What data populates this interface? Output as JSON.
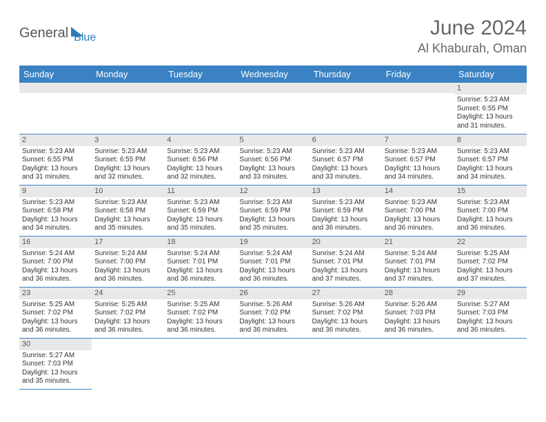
{
  "logo": {
    "part1": "General",
    "part2": "Blue"
  },
  "title": "June 2024",
  "location": "Al Khaburah, Oman",
  "colors": {
    "header_bg": "#3b82c4",
    "header_text": "#ffffff",
    "daynum_bg": "#e8e8e8",
    "border": "#3b82c4",
    "text": "#333333",
    "title_text": "#666666"
  },
  "weekdays": [
    "Sunday",
    "Monday",
    "Tuesday",
    "Wednesday",
    "Thursday",
    "Friday",
    "Saturday"
  ],
  "weeks": [
    [
      null,
      null,
      null,
      null,
      null,
      null,
      {
        "n": "1",
        "sr": "5:23 AM",
        "ss": "6:55 PM",
        "dl": "13 hours and 31 minutes."
      }
    ],
    [
      {
        "n": "2",
        "sr": "5:23 AM",
        "ss": "6:55 PM",
        "dl": "13 hours and 31 minutes."
      },
      {
        "n": "3",
        "sr": "5:23 AM",
        "ss": "6:55 PM",
        "dl": "13 hours and 32 minutes."
      },
      {
        "n": "4",
        "sr": "5:23 AM",
        "ss": "6:56 PM",
        "dl": "13 hours and 32 minutes."
      },
      {
        "n": "5",
        "sr": "5:23 AM",
        "ss": "6:56 PM",
        "dl": "13 hours and 33 minutes."
      },
      {
        "n": "6",
        "sr": "5:23 AM",
        "ss": "6:57 PM",
        "dl": "13 hours and 33 minutes."
      },
      {
        "n": "7",
        "sr": "5:23 AM",
        "ss": "6:57 PM",
        "dl": "13 hours and 34 minutes."
      },
      {
        "n": "8",
        "sr": "5:23 AM",
        "ss": "6:57 PM",
        "dl": "13 hours and 34 minutes."
      }
    ],
    [
      {
        "n": "9",
        "sr": "5:23 AM",
        "ss": "6:58 PM",
        "dl": "13 hours and 34 minutes."
      },
      {
        "n": "10",
        "sr": "5:23 AM",
        "ss": "6:58 PM",
        "dl": "13 hours and 35 minutes."
      },
      {
        "n": "11",
        "sr": "5:23 AM",
        "ss": "6:59 PM",
        "dl": "13 hours and 35 minutes."
      },
      {
        "n": "12",
        "sr": "5:23 AM",
        "ss": "6:59 PM",
        "dl": "13 hours and 35 minutes."
      },
      {
        "n": "13",
        "sr": "5:23 AM",
        "ss": "6:59 PM",
        "dl": "13 hours and 36 minutes."
      },
      {
        "n": "14",
        "sr": "5:23 AM",
        "ss": "7:00 PM",
        "dl": "13 hours and 36 minutes."
      },
      {
        "n": "15",
        "sr": "5:23 AM",
        "ss": "7:00 PM",
        "dl": "13 hours and 36 minutes."
      }
    ],
    [
      {
        "n": "16",
        "sr": "5:24 AM",
        "ss": "7:00 PM",
        "dl": "13 hours and 36 minutes."
      },
      {
        "n": "17",
        "sr": "5:24 AM",
        "ss": "7:00 PM",
        "dl": "13 hours and 36 minutes."
      },
      {
        "n": "18",
        "sr": "5:24 AM",
        "ss": "7:01 PM",
        "dl": "13 hours and 36 minutes."
      },
      {
        "n": "19",
        "sr": "5:24 AM",
        "ss": "7:01 PM",
        "dl": "13 hours and 36 minutes."
      },
      {
        "n": "20",
        "sr": "5:24 AM",
        "ss": "7:01 PM",
        "dl": "13 hours and 37 minutes."
      },
      {
        "n": "21",
        "sr": "5:24 AM",
        "ss": "7:01 PM",
        "dl": "13 hours and 37 minutes."
      },
      {
        "n": "22",
        "sr": "5:25 AM",
        "ss": "7:02 PM",
        "dl": "13 hours and 37 minutes."
      }
    ],
    [
      {
        "n": "23",
        "sr": "5:25 AM",
        "ss": "7:02 PM",
        "dl": "13 hours and 36 minutes."
      },
      {
        "n": "24",
        "sr": "5:25 AM",
        "ss": "7:02 PM",
        "dl": "13 hours and 36 minutes."
      },
      {
        "n": "25",
        "sr": "5:25 AM",
        "ss": "7:02 PM",
        "dl": "13 hours and 36 minutes."
      },
      {
        "n": "26",
        "sr": "5:26 AM",
        "ss": "7:02 PM",
        "dl": "13 hours and 36 minutes."
      },
      {
        "n": "27",
        "sr": "5:26 AM",
        "ss": "7:02 PM",
        "dl": "13 hours and 36 minutes."
      },
      {
        "n": "28",
        "sr": "5:26 AM",
        "ss": "7:03 PM",
        "dl": "13 hours and 36 minutes."
      },
      {
        "n": "29",
        "sr": "5:27 AM",
        "ss": "7:03 PM",
        "dl": "13 hours and 36 minutes."
      }
    ],
    [
      {
        "n": "30",
        "sr": "5:27 AM",
        "ss": "7:03 PM",
        "dl": "13 hours and 35 minutes."
      },
      null,
      null,
      null,
      null,
      null,
      null
    ]
  ],
  "labels": {
    "sunrise": "Sunrise:",
    "sunset": "Sunset:",
    "daylight": "Daylight:"
  }
}
